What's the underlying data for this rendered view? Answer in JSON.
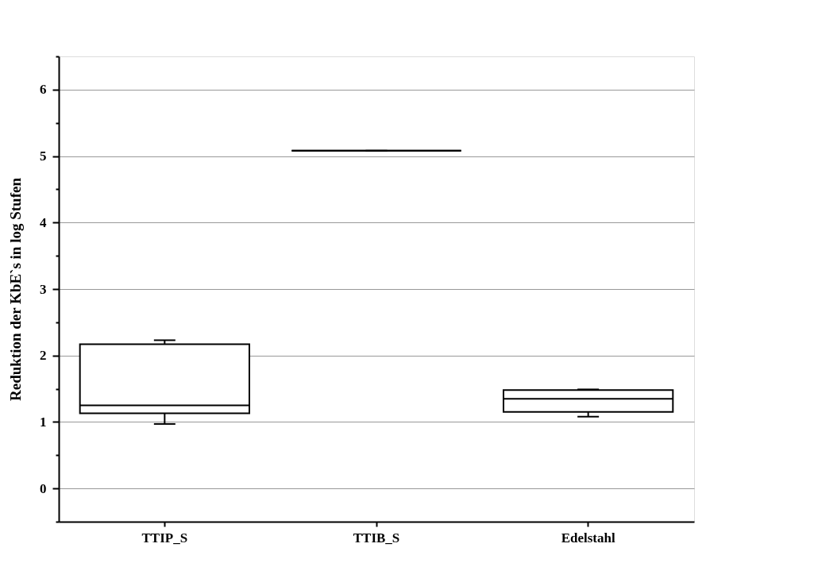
{
  "chart_data": {
    "type": "box",
    "ylabel": "Reduktion der KbE`s in log Stufen",
    "categories": [
      "TTIP_S",
      "TTIB_S",
      "Edelstahl"
    ],
    "boxes": [
      {
        "low": 0.97,
        "q1": 1.13,
        "median": 1.25,
        "q3": 2.17,
        "high": 2.23
      },
      {
        "low": 5.08,
        "q1": 5.08,
        "median": 5.08,
        "q3": 5.08,
        "high": 5.08
      },
      {
        "low": 1.08,
        "q1": 1.15,
        "median": 1.35,
        "q3": 1.48,
        "high": 1.49
      }
    ],
    "ylim": [
      -0.5,
      6.5
    ],
    "yticks": [
      {
        "value": -0.5,
        "label": null
      },
      0,
      {
        "value": 0.5,
        "label": null
      },
      1,
      {
        "value": 1.5,
        "label": null
      },
      2,
      {
        "value": 2.5,
        "label": null
      },
      3,
      {
        "value": 3.5,
        "label": null
      },
      4,
      {
        "value": 4.5,
        "label": null
      },
      5,
      {
        "value": 5.5,
        "label": null
      },
      6,
      {
        "value": 6.5,
        "label": null
      }
    ],
    "grid": "y"
  }
}
